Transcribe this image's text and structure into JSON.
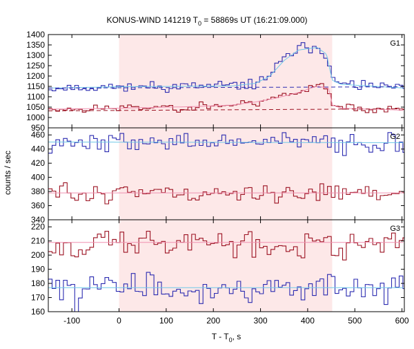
{
  "chart_data": {
    "type": "line",
    "title": {
      "main": "KONUS-WIND 141219 T",
      "sub": "0",
      "rest": " = 58869s UT (16:21:09.000)"
    },
    "xlabel": {
      "main": "T - T",
      "sub": "0",
      "rest": ", s"
    },
    "ylabel": "counts / sec",
    "xlim": [
      -150,
      605
    ],
    "xticks": [
      -100,
      0,
      100,
      200,
      300,
      400,
      500,
      600
    ],
    "xtick_labels": [
      "-100",
      "0",
      "100",
      "200",
      "300",
      "400",
      "500",
      "600"
    ],
    "highlight_interval": [
      0,
      452
    ],
    "colors": {
      "highlight": "#fde8e8",
      "dark_blue": "#2a2ab0",
      "light_blue": "#6fc8e8",
      "dark_red": "#9b1020",
      "pink": "#f090b0"
    },
    "panels": [
      {
        "name": "G1",
        "ylim": [
          950,
          1400
        ],
        "yticks": [
          950,
          1000,
          1050,
          1100,
          1150,
          1200,
          1250,
          1300,
          1350,
          1400
        ],
        "ytick_labels": [
          "950",
          "1000",
          "1050",
          "1100",
          "1150",
          "1200",
          "1250",
          "1300",
          "1350",
          "1400"
        ],
        "series": [
          {
            "style": "step",
            "color": "dark_blue",
            "noise": 12,
            "seed": 11,
            "profile": [
              [
                -150,
                1142
              ],
              [
                0,
                1148
              ],
              [
                150,
                1150
              ],
              [
                240,
                1152
              ],
              [
                290,
                1165
              ],
              [
                320,
                1205
              ],
              [
                350,
                1280
              ],
              [
                380,
                1332
              ],
              [
                420,
                1345
              ],
              [
                440,
                1310
              ],
              [
                452,
                1180
              ],
              [
                470,
                1160
              ],
              [
                605,
                1142
              ]
            ]
          },
          {
            "style": "smooth",
            "color": "light_blue",
            "profile": [
              [
                -150,
                1142
              ],
              [
                0,
                1148
              ],
              [
                240,
                1152
              ],
              [
                290,
                1165
              ],
              [
                320,
                1200
              ],
              [
                350,
                1275
              ],
              [
                380,
                1325
              ],
              [
                420,
                1338
              ],
              [
                440,
                1305
              ],
              [
                452,
                1180
              ],
              [
                470,
                1160
              ],
              [
                605,
                1142
              ]
            ]
          },
          {
            "style": "dashed",
            "color": "dark_blue",
            "profile": [
              [
                -150,
                1142
              ],
              [
                605,
                1148
              ]
            ]
          },
          {
            "style": "step",
            "color": "dark_red",
            "noise": 10,
            "seed": 23,
            "profile": [
              [
                -150,
                1040
              ],
              [
                0,
                1045
              ],
              [
                150,
                1052
              ],
              [
                240,
                1060
              ],
              [
                290,
                1075
              ],
              [
                330,
                1095
              ],
              [
                380,
                1125
              ],
              [
                420,
                1160
              ],
              [
                445,
                1145
              ],
              [
                452,
                1060
              ],
              [
                470,
                1045
              ],
              [
                605,
                1035
              ]
            ]
          },
          {
            "style": "smooth",
            "color": "pink",
            "profile": [
              [
                -150,
                1040
              ],
              [
                0,
                1045
              ],
              [
                150,
                1052
              ],
              [
                240,
                1060
              ],
              [
                290,
                1075
              ],
              [
                330,
                1092
              ],
              [
                380,
                1120
              ],
              [
                420,
                1152
              ],
              [
                445,
                1140
              ],
              [
                452,
                1060
              ],
              [
                470,
                1045
              ],
              [
                605,
                1035
              ]
            ]
          },
          {
            "style": "dashed",
            "color": "dark_red",
            "profile": [
              [
                -150,
                1032
              ],
              [
                605,
                1042
              ]
            ]
          }
        ]
      },
      {
        "name": "G2",
        "ylim": [
          340,
          470
        ],
        "yticks": [
          340,
          360,
          380,
          400,
          420,
          440,
          460
        ],
        "ytick_labels": [
          "340",
          "360",
          "380",
          "400",
          "420",
          "440",
          "460"
        ],
        "series": [
          {
            "style": "step",
            "color": "dark_blue",
            "noise": 7,
            "seed": 37,
            "profile": [
              [
                -150,
                450
              ],
              [
                605,
                449
              ]
            ]
          },
          {
            "style": "smooth",
            "color": "light_blue",
            "profile": [
              [
                -150,
                450
              ],
              [
                605,
                449
              ]
            ]
          },
          {
            "style": "step",
            "color": "dark_red",
            "noise": 7,
            "seed": 51,
            "profile": [
              [
                -150,
                378
              ],
              [
                605,
                378
              ]
            ]
          },
          {
            "style": "smooth",
            "color": "pink",
            "profile": [
              [
                -150,
                378
              ],
              [
                605,
                378
              ]
            ]
          }
        ]
      },
      {
        "name": "G3",
        "ylim": [
          160,
          225
        ],
        "yticks": [
          160,
          170,
          180,
          190,
          200,
          210,
          220
        ],
        "ytick_labels": [
          "160",
          "170",
          "180",
          "190",
          "200",
          "210",
          "220"
        ],
        "series": [
          {
            "style": "step",
            "color": "dark_red",
            "noise": 5,
            "seed": 67,
            "profile": [
              [
                -150,
                208
              ],
              [
                605,
                209
              ]
            ]
          },
          {
            "style": "smooth",
            "color": "pink",
            "profile": [
              [
                -150,
                209
              ],
              [
                605,
                209
              ]
            ]
          },
          {
            "style": "step",
            "color": "dark_blue",
            "noise": 5,
            "seed": 83,
            "profile": [
              [
                -150,
                177
              ],
              [
                605,
                177
              ]
            ]
          },
          {
            "style": "smooth",
            "color": "light_blue",
            "profile": [
              [
                -150,
                177
              ],
              [
                605,
                177
              ]
            ]
          }
        ]
      }
    ]
  }
}
